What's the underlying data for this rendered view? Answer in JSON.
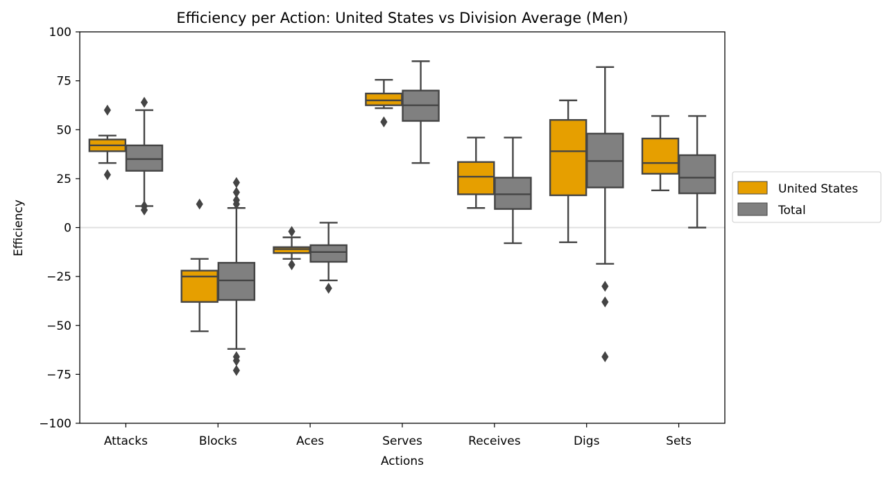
{
  "chart_data": {
    "type": "boxplot",
    "title": "Efficiency per Action: United States vs Division Average (Men)",
    "xlabel": "Actions",
    "ylabel": "Efficiency",
    "ylim": [
      -100,
      100
    ],
    "yticks": [
      -100,
      -75,
      -50,
      -25,
      0,
      25,
      50,
      75,
      100
    ],
    "ytick_labels": [
      "−100",
      "−75",
      "−50",
      "−25",
      "0",
      "25",
      "50",
      "75",
      "100"
    ],
    "reference_line": 0,
    "categories": [
      "Attacks",
      "Blocks",
      "Aces",
      "Serves",
      "Receives",
      "Digs",
      "Sets"
    ],
    "legend_position": "center-right, outside plot",
    "series": [
      {
        "name": "United States",
        "color": "#e69f00",
        "boxes": [
          {
            "whisker_low": 33,
            "q1": 39,
            "median": 42,
            "q3": 45,
            "whisker_high": 47,
            "outliers": [
              27,
              60
            ]
          },
          {
            "whisker_low": -53,
            "q1": -38,
            "median": -25,
            "q3": -22,
            "whisker_high": -16,
            "outliers": [
              12
            ]
          },
          {
            "whisker_low": -16,
            "q1": -13,
            "median": -11,
            "q3": -10,
            "whisker_high": -5,
            "outliers": [
              -2,
              -19
            ]
          },
          {
            "whisker_low": 61,
            "q1": 62.5,
            "median": 65,
            "q3": 68.5,
            "whisker_high": 75.5,
            "outliers": [
              54
            ]
          },
          {
            "whisker_low": 10,
            "q1": 17,
            "median": 26,
            "q3": 33.5,
            "whisker_high": 46,
            "outliers": []
          },
          {
            "whisker_low": -7.5,
            "q1": 16.5,
            "median": 39,
            "q3": 55,
            "whisker_high": 65,
            "outliers": []
          },
          {
            "whisker_low": 19,
            "q1": 27.5,
            "median": 33,
            "q3": 45.5,
            "whisker_high": 57,
            "outliers": []
          }
        ]
      },
      {
        "name": "Total",
        "color": "#808080",
        "boxes": [
          {
            "whisker_low": 11,
            "q1": 29,
            "median": 35,
            "q3": 42,
            "whisker_high": 60,
            "outliers": [
              9,
              11,
              64
            ]
          },
          {
            "whisker_low": -62,
            "q1": -37,
            "median": -27,
            "q3": -18,
            "whisker_high": 10,
            "outliers": [
              -73,
              -68,
              -66,
              12,
              14,
              18,
              23
            ]
          },
          {
            "whisker_low": -27,
            "q1": -17.5,
            "median": -12.5,
            "q3": -9,
            "whisker_high": 2.5,
            "outliers": [
              -31
            ]
          },
          {
            "whisker_low": 33,
            "q1": 54.5,
            "median": 62.5,
            "q3": 70,
            "whisker_high": 85,
            "outliers": []
          },
          {
            "whisker_low": -8,
            "q1": 9.5,
            "median": 17,
            "q3": 25.5,
            "whisker_high": 46,
            "outliers": []
          },
          {
            "whisker_low": -18.5,
            "q1": 20.5,
            "median": 34,
            "q3": 48,
            "whisker_high": 82,
            "outliers": [
              -30,
              -38,
              -66
            ]
          },
          {
            "whisker_low": 0,
            "q1": 17.5,
            "median": 25.5,
            "q3": 37,
            "whisker_high": 57,
            "outliers": []
          }
        ]
      }
    ]
  }
}
